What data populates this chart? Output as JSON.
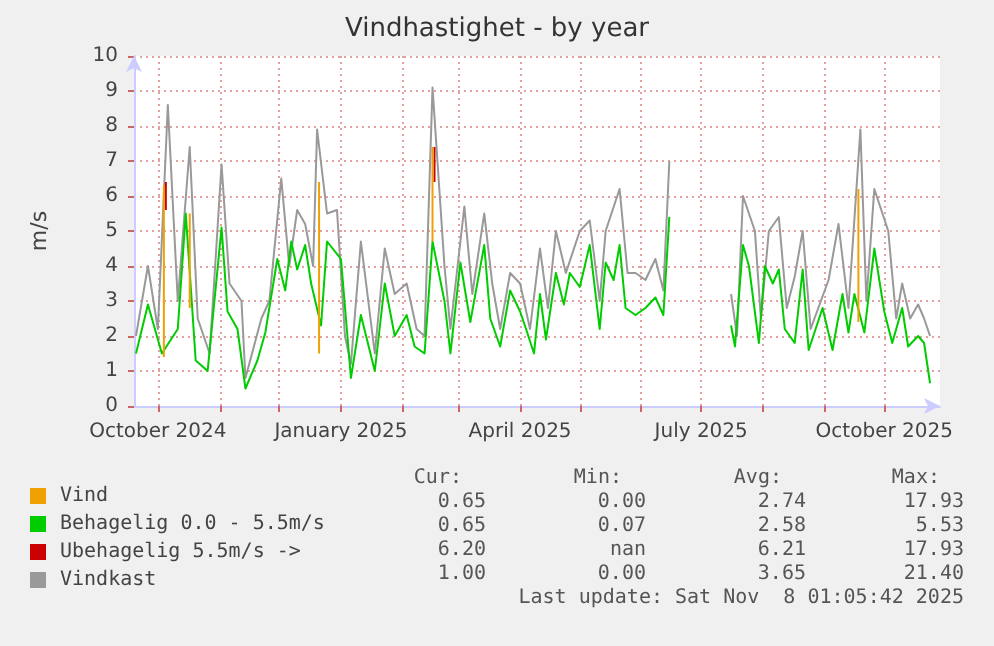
{
  "chart_data": {
    "type": "line",
    "title": "Vindhastighet - by year",
    "ylabel": "m/s",
    "xlim": [
      "2024-09-19",
      "2025-10-29"
    ],
    "ylim": [
      0,
      10
    ],
    "yticks": [
      0,
      1,
      2,
      3,
      4,
      5,
      6,
      7,
      8,
      9,
      10
    ],
    "xticks": [
      {
        "value": "2024-10-01",
        "label": "October 2024"
      },
      {
        "value": "2024-11-01",
        "label": null
      },
      {
        "value": "2024-12-01",
        "label": null
      },
      {
        "value": "2025-01-01",
        "label": "January 2025"
      },
      {
        "value": "2025-02-01",
        "label": null
      },
      {
        "value": "2025-03-01",
        "label": null
      },
      {
        "value": "2025-04-01",
        "label": "April 2025"
      },
      {
        "value": "2025-05-01",
        "label": null
      },
      {
        "value": "2025-06-01",
        "label": null
      },
      {
        "value": "2025-07-01",
        "label": "July 2025"
      },
      {
        "value": "2025-08-01",
        "label": null
      },
      {
        "value": "2025-09-01",
        "label": null
      },
      {
        "value": "2025-10-01",
        "label": "October 2025"
      }
    ],
    "grid": true,
    "legend": "bottom left",
    "marker": "none",
    "line_style": "solid",
    "series": [
      {
        "name": "Vind",
        "color": "#f0a000",
        "x": [
          "2024-10-04",
          "2024-10-04",
          "2024-10-05",
          "2024-10-17",
          "2024-10-17",
          "2024-10-18",
          "2024-12-21",
          "2024-12-21",
          "2024-12-22",
          "2025-02-16",
          "2025-02-16",
          "2025-02-17",
          "2025-09-18",
          "2025-09-18"
        ],
        "values": [
          1.4,
          6.3,
          null,
          2.8,
          5.5,
          null,
          1.5,
          6.4,
          null,
          4.7,
          7.4,
          null,
          2.4,
          6.2
        ]
      },
      {
        "name": "Behagelig 0.0 - 5.5m/s",
        "color": "#00cc00",
        "x": [
          "2024-09-20",
          "2024-09-26",
          "2024-10-03",
          "2024-10-11",
          "2024-10-15",
          "2024-10-18",
          "2024-10-20",
          "2024-10-26",
          "2024-11-02",
          "2024-11-05",
          "2024-11-10",
          "2024-11-14",
          "2024-11-20",
          "2024-11-24",
          "2024-11-30",
          "2024-12-04",
          "2024-12-07",
          "2024-12-10",
          "2024-12-14",
          "2024-12-17",
          "2024-12-22",
          "2024-12-25",
          "2025-01-01",
          "2025-01-06",
          "2025-01-11",
          "2025-01-18",
          "2025-01-23",
          "2025-01-28",
          "2025-02-03",
          "2025-02-07",
          "2025-02-12",
          "2025-02-16",
          "2025-02-22",
          "2025-02-25",
          "2025-03-02",
          "2025-03-07",
          "2025-03-14",
          "2025-03-17",
          "2025-03-22",
          "2025-03-27",
          "2025-04-01",
          "2025-04-04",
          "2025-04-08",
          "2025-04-11",
          "2025-04-14",
          "2025-04-19",
          "2025-04-23",
          "2025-04-26",
          "2025-05-01",
          "2025-05-06",
          "2025-05-11",
          "2025-05-14",
          "2025-05-18",
          "2025-05-21",
          "2025-05-24",
          "2025-05-29",
          "2025-06-03",
          "2025-06-08",
          "2025-06-12",
          "2025-06-15",
          "2025-07-01",
          "2025-07-16",
          "2025-07-18",
          "2025-07-22",
          "2025-07-25",
          "2025-07-30",
          "2025-08-02",
          "2025-08-06",
          "2025-08-09",
          "2025-08-12",
          "2025-08-17",
          "2025-08-21",
          "2025-08-24",
          "2025-08-31",
          "2025-09-05",
          "2025-09-10",
          "2025-09-13",
          "2025-09-16",
          "2025-09-21",
          "2025-09-26",
          "2025-10-01",
          "2025-10-05",
          "2025-10-10",
          "2025-10-13",
          "2025-10-18",
          "2025-10-21",
          "2025-10-24"
        ],
        "values": [
          1.5,
          2.9,
          1.5,
          2.2,
          5.5,
          3.0,
          1.3,
          1.0,
          5.1,
          2.7,
          2.2,
          0.5,
          1.3,
          2.1,
          4.2,
          3.3,
          4.7,
          3.9,
          4.6,
          3.5,
          2.3,
          4.7,
          4.2,
          0.8,
          2.6,
          1.0,
          3.5,
          2.0,
          2.6,
          1.7,
          1.5,
          4.7,
          3.0,
          1.5,
          4.1,
          2.4,
          4.6,
          2.5,
          1.7,
          3.3,
          2.7,
          2.2,
          1.5,
          3.2,
          1.9,
          3.8,
          2.9,
          3.8,
          3.4,
          4.6,
          2.2,
          4.1,
          3.6,
          4.6,
          2.8,
          2.6,
          2.8,
          3.1,
          2.6,
          5.4,
          null,
          2.3,
          1.7,
          4.6,
          4.0,
          1.8,
          4.0,
          3.5,
          3.9,
          2.2,
          1.8,
          3.9,
          1.6,
          2.8,
          1.6,
          3.2,
          2.1,
          3.2,
          2.1,
          4.5,
          2.7,
          1.8,
          2.8,
          1.7,
          2.0,
          1.8,
          0.65
        ]
      },
      {
        "name": "Ubehagelig 5.5m/s ->",
        "color": "#cc0000",
        "x": [
          "2024-10-05",
          "2024-10-05",
          "2024-10-06",
          "2025-02-17",
          "2025-02-17"
        ],
        "values": [
          5.6,
          6.4,
          null,
          6.4,
          7.4
        ]
      },
      {
        "name": "Vindkast",
        "color": "#999999",
        "x": [
          "2024-09-20",
          "2024-09-26",
          "2024-10-01",
          "2024-10-06",
          "2024-10-11",
          "2024-10-17",
          "2024-10-21",
          "2024-10-27",
          "2024-11-02",
          "2024-11-06",
          "2024-11-12",
          "2024-11-14",
          "2024-11-22",
          "2024-11-26",
          "2024-12-02",
          "2024-12-06",
          "2024-12-10",
          "2024-12-14",
          "2024-12-18",
          "2024-12-20",
          "2024-12-25",
          "2024-12-30",
          "2025-01-03",
          "2025-01-06",
          "2025-01-11",
          "2025-01-18",
          "2025-01-23",
          "2025-01-28",
          "2025-02-03",
          "2025-02-08",
          "2025-02-12",
          "2025-02-16",
          "2025-02-22",
          "2025-02-25",
          "2025-03-04",
          "2025-03-08",
          "2025-03-14",
          "2025-03-18",
          "2025-03-22",
          "2025-03-27",
          "2025-04-01",
          "2025-04-06",
          "2025-04-11",
          "2025-04-15",
          "2025-04-19",
          "2025-04-24",
          "2025-05-01",
          "2025-05-06",
          "2025-05-11",
          "2025-05-14",
          "2025-05-21",
          "2025-05-25",
          "2025-05-29",
          "2025-06-03",
          "2025-06-08",
          "2025-06-12",
          "2025-06-15",
          "2025-07-01",
          "2025-07-16",
          "2025-07-19",
          "2025-07-22",
          "2025-07-28",
          "2025-07-31",
          "2025-08-04",
          "2025-08-09",
          "2025-08-13",
          "2025-08-17",
          "2025-08-21",
          "2025-08-25",
          "2025-09-03",
          "2025-09-08",
          "2025-09-13",
          "2025-09-19",
          "2025-09-22",
          "2025-09-26",
          "2025-10-03",
          "2025-10-07",
          "2025-10-10",
          "2025-10-14",
          "2025-10-18",
          "2025-10-21",
          "2025-10-24"
        ],
        "values": [
          2.0,
          4.0,
          2.2,
          8.6,
          3.0,
          7.4,
          2.5,
          1.5,
          6.9,
          3.5,
          3.0,
          0.8,
          2.5,
          3.0,
          6.5,
          4.0,
          5.6,
          5.2,
          4.0,
          7.9,
          5.5,
          5.6,
          2.0,
          1.2,
          4.7,
          1.5,
          4.5,
          3.2,
          3.5,
          2.2,
          2.0,
          9.1,
          4.0,
          2.2,
          5.7,
          3.2,
          5.5,
          3.5,
          2.2,
          3.8,
          3.5,
          2.2,
          4.5,
          2.8,
          5.0,
          3.8,
          5.0,
          5.3,
          3.0,
          5.0,
          6.2,
          3.8,
          3.8,
          3.6,
          4.2,
          3.3,
          7.0,
          null,
          3.2,
          2.0,
          6.0,
          5.0,
          2.5,
          5.0,
          5.4,
          2.8,
          3.7,
          5.0,
          2.2,
          3.6,
          5.2,
          2.8,
          7.9,
          3.0,
          6.2,
          5.0,
          2.5,
          3.5,
          2.5,
          2.9,
          2.5,
          2.0
        ]
      }
    ],
    "annotations": [
      "Cur:",
      "Min:",
      "Avg:",
      "Max:",
      "0.65",
      "0.00",
      "2.74",
      "17.93",
      "0.65",
      "0.07",
      "2.58",
      "5.53",
      "6.20",
      "nan",
      "6.21",
      "17.93",
      "1.00",
      "0.00",
      "3.65",
      "21.40",
      "Last update: Sat Nov  8 01:05:42 2025"
    ]
  }
}
